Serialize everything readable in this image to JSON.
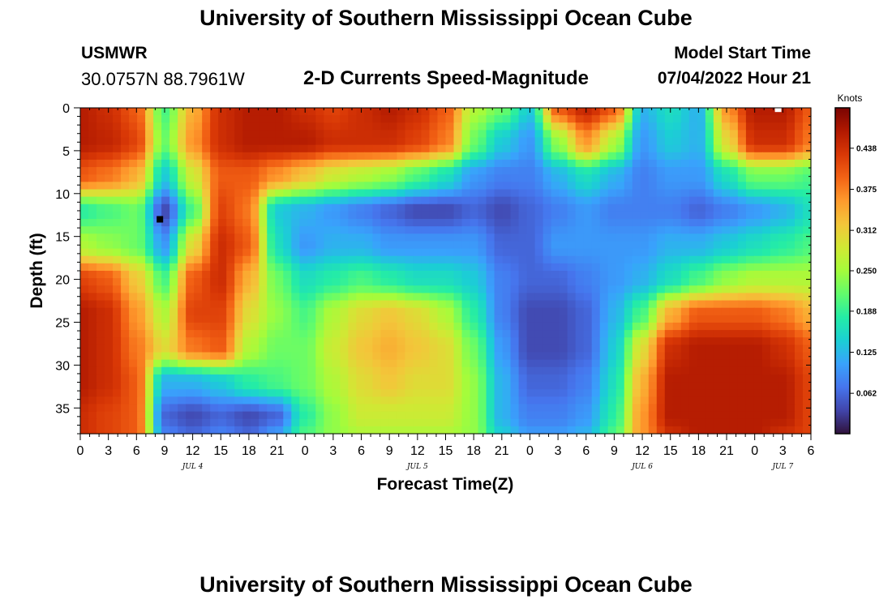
{
  "header": {
    "title": "University of Southern Mississippi Ocean Cube",
    "station_name": "USMWR",
    "station_coords": "30.0757N  88.7961W",
    "subtitle": "2-D Currents Speed-Magnitude",
    "model_start_label": "Model Start Time",
    "model_start_value": "07/04/2022 Hour 21"
  },
  "footer": {
    "title": "University of Southern Mississippi Ocean Cube"
  },
  "chart_data": {
    "type": "heatmap",
    "title": "2-D Currents Speed-Magnitude",
    "xlabel": "Forecast Time(Z)",
    "ylabel": "Depth (ft)",
    "x_units": "forecast hour",
    "xlim": [
      0,
      78
    ],
    "ylim": [
      0,
      38
    ],
    "y_inverted": true,
    "x_tick_labels": [
      "0",
      "3",
      "6",
      "9",
      "12",
      "15",
      "18",
      "21",
      "0",
      "3",
      "6",
      "9",
      "12",
      "15",
      "18",
      "21",
      "0",
      "3",
      "6",
      "9",
      "12",
      "15",
      "18",
      "21",
      "0",
      "3",
      "6"
    ],
    "x_date_labels": [
      {
        "label": "JUL 4",
        "hour": 12
      },
      {
        "label": "JUL 5",
        "hour": 36
      },
      {
        "label": "JUL 6",
        "hour": 60
      },
      {
        "label": "JUL 7",
        "hour": 75
      }
    ],
    "y_ticks": [
      0,
      5,
      10,
      15,
      20,
      25,
      30,
      35
    ],
    "colorbar": {
      "label": "Knots",
      "min": 0.0,
      "max": 0.5,
      "ticks": [
        "0.062",
        "0.125",
        "0.188",
        "0.250",
        "0.312",
        "0.375",
        "0.438"
      ],
      "colors": [
        "#30123b",
        "#4145ab",
        "#4675ed",
        "#39a2fc",
        "#1bcfd4",
        "#24eca6",
        "#61fc6c",
        "#a4fc3b",
        "#d1e834",
        "#f3c63a",
        "#fe9b2d",
        "#f36315",
        "#d93806",
        "#b11901",
        "#7a0402"
      ]
    },
    "depth_levels_ft": [
      0,
      4,
      8,
      12,
      16,
      20,
      24,
      28,
      32,
      36,
      38
    ],
    "time_hours": [
      0,
      3,
      6,
      9,
      12,
      15,
      18,
      21,
      24,
      27,
      30,
      33,
      36,
      39,
      42,
      45,
      48,
      51,
      54,
      57,
      60,
      63,
      66,
      69,
      72,
      75,
      78
    ],
    "speed_knots": [
      [
        0.46,
        0.44,
        0.4,
        0.2,
        0.34,
        0.44,
        0.46,
        0.46,
        0.44,
        0.42,
        0.44,
        0.46,
        0.44,
        0.4,
        0.26,
        0.22,
        0.14,
        0.4,
        0.45,
        0.4,
        0.12,
        0.16,
        0.12,
        0.36,
        0.46,
        0.46,
        0.4
      ],
      [
        0.46,
        0.45,
        0.42,
        0.22,
        0.36,
        0.44,
        0.46,
        0.46,
        0.46,
        0.44,
        0.44,
        0.44,
        0.42,
        0.38,
        0.22,
        0.14,
        0.1,
        0.24,
        0.36,
        0.26,
        0.1,
        0.14,
        0.12,
        0.3,
        0.44,
        0.44,
        0.38
      ],
      [
        0.4,
        0.38,
        0.34,
        0.14,
        0.28,
        0.4,
        0.4,
        0.36,
        0.32,
        0.28,
        0.26,
        0.24,
        0.2,
        0.16,
        0.1,
        0.08,
        0.08,
        0.12,
        0.16,
        0.12,
        0.08,
        0.1,
        0.1,
        0.16,
        0.22,
        0.22,
        0.2
      ],
      [
        0.18,
        0.2,
        0.22,
        0.04,
        0.2,
        0.42,
        0.38,
        0.14,
        0.12,
        0.1,
        0.08,
        0.06,
        0.04,
        0.04,
        0.06,
        0.04,
        0.06,
        0.08,
        0.1,
        0.08,
        0.08,
        0.08,
        0.06,
        0.08,
        0.1,
        0.12,
        0.16
      ],
      [
        0.26,
        0.24,
        0.22,
        0.1,
        0.3,
        0.44,
        0.4,
        0.16,
        0.1,
        0.12,
        0.12,
        0.1,
        0.1,
        0.1,
        0.1,
        0.06,
        0.06,
        0.1,
        0.1,
        0.1,
        0.1,
        0.12,
        0.12,
        0.14,
        0.16,
        0.18,
        0.2
      ],
      [
        0.42,
        0.4,
        0.32,
        0.2,
        0.4,
        0.44,
        0.34,
        0.22,
        0.16,
        0.18,
        0.2,
        0.18,
        0.16,
        0.16,
        0.14,
        0.08,
        0.06,
        0.06,
        0.08,
        0.1,
        0.12,
        0.16,
        0.2,
        0.24,
        0.26,
        0.26,
        0.26
      ],
      [
        0.46,
        0.44,
        0.36,
        0.26,
        0.42,
        0.42,
        0.3,
        0.24,
        0.2,
        0.26,
        0.3,
        0.32,
        0.3,
        0.26,
        0.18,
        0.08,
        0.04,
        0.04,
        0.06,
        0.12,
        0.2,
        0.34,
        0.4,
        0.4,
        0.4,
        0.38,
        0.34
      ],
      [
        0.46,
        0.44,
        0.38,
        0.3,
        0.38,
        0.4,
        0.26,
        0.22,
        0.22,
        0.28,
        0.32,
        0.34,
        0.32,
        0.3,
        0.22,
        0.1,
        0.04,
        0.04,
        0.06,
        0.14,
        0.3,
        0.44,
        0.46,
        0.46,
        0.46,
        0.44,
        0.4
      ],
      [
        0.46,
        0.44,
        0.4,
        0.12,
        0.12,
        0.14,
        0.18,
        0.2,
        0.22,
        0.26,
        0.3,
        0.32,
        0.3,
        0.3,
        0.24,
        0.12,
        0.06,
        0.06,
        0.08,
        0.16,
        0.34,
        0.46,
        0.46,
        0.46,
        0.46,
        0.46,
        0.42
      ],
      [
        0.44,
        0.42,
        0.4,
        0.06,
        0.04,
        0.06,
        0.04,
        0.06,
        0.18,
        0.24,
        0.28,
        0.28,
        0.28,
        0.28,
        0.24,
        0.12,
        0.08,
        0.08,
        0.1,
        0.18,
        0.36,
        0.46,
        0.46,
        0.46,
        0.46,
        0.46,
        0.42
      ],
      [
        0.44,
        0.42,
        0.4,
        0.08,
        0.06,
        0.08,
        0.06,
        0.1,
        0.2,
        0.24,
        0.26,
        0.26,
        0.26,
        0.26,
        0.24,
        0.14,
        0.1,
        0.1,
        0.12,
        0.2,
        0.36,
        0.44,
        0.46,
        0.46,
        0.46,
        0.44,
        0.42
      ]
    ],
    "markers": [
      {
        "name": "minimum",
        "hour": 8.5,
        "depth": 13
      },
      {
        "name": "maximum",
        "hour": 74.5,
        "depth": 0.3
      }
    ]
  }
}
